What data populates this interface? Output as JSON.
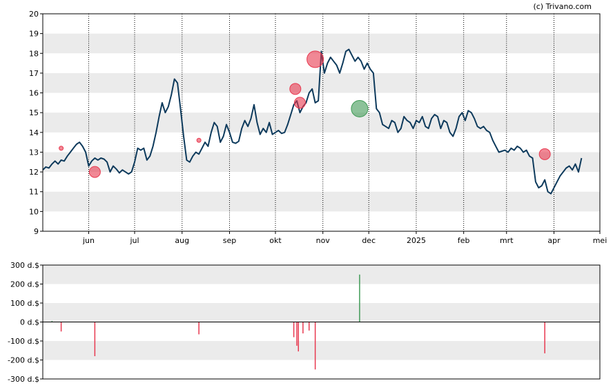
{
  "credit": "(c) Trivano.com",
  "colors": {
    "band": "#ebebeb",
    "price_line": "#0d3a5c",
    "sell": "#e8384f",
    "buy": "#3f9a55",
    "axis": "#000000"
  },
  "chart_data": [
    {
      "type": "line",
      "title": "",
      "xlabel": "",
      "ylabel": "",
      "ylim": [
        9,
        20
      ],
      "y_ticks": [
        "9",
        "10",
        "11",
        "12",
        "13",
        "14",
        "15",
        "16",
        "17",
        "18",
        "19",
        "20"
      ],
      "x_ticks": [
        "jun",
        "jul",
        "aug",
        "sep",
        "okt",
        "nov",
        "dec",
        "2025",
        "feb",
        "mrt",
        "apr",
        "mei"
      ],
      "x_tick_days": [
        30,
        60,
        91,
        122,
        152,
        183,
        213,
        244,
        275,
        303,
        334,
        364
      ],
      "grid": {
        "vertical": "dotted",
        "horizontal_bands": true
      },
      "series": [
        {
          "points": [
            [
              0,
              12.1
            ],
            [
              2,
              12.25
            ],
            [
              4,
              12.2
            ],
            [
              6,
              12.4
            ],
            [
              8,
              12.55
            ],
            [
              10,
              12.4
            ],
            [
              12,
              12.6
            ],
            [
              14,
              12.55
            ],
            [
              16,
              12.8
            ],
            [
              18,
              13.0
            ],
            [
              20,
              13.2
            ],
            [
              22,
              13.4
            ],
            [
              24,
              13.5
            ],
            [
              26,
              13.3
            ],
            [
              28,
              13.0
            ],
            [
              30,
              12.3
            ],
            [
              32,
              12.55
            ],
            [
              34,
              12.7
            ],
            [
              36,
              12.6
            ],
            [
              38,
              12.7
            ],
            [
              40,
              12.65
            ],
            [
              42,
              12.5
            ],
            [
              44,
              12.0
            ],
            [
              46,
              12.3
            ],
            [
              48,
              12.15
            ],
            [
              50,
              11.95
            ],
            [
              52,
              12.1
            ],
            [
              54,
              12.0
            ],
            [
              56,
              11.9
            ],
            [
              58,
              12.0
            ],
            [
              60,
              12.5
            ],
            [
              62,
              13.2
            ],
            [
              64,
              13.1
            ],
            [
              66,
              13.2
            ],
            [
              68,
              12.6
            ],
            [
              70,
              12.8
            ],
            [
              72,
              13.3
            ],
            [
              74,
              14.0
            ],
            [
              76,
              14.8
            ],
            [
              78,
              15.5
            ],
            [
              80,
              15.0
            ],
            [
              82,
              15.3
            ],
            [
              84,
              15.9
            ],
            [
              86,
              16.7
            ],
            [
              88,
              16.5
            ],
            [
              90,
              15.2
            ],
            [
              92,
              13.8
            ],
            [
              94,
              12.6
            ],
            [
              96,
              12.5
            ],
            [
              98,
              12.8
            ],
            [
              100,
              13.0
            ],
            [
              102,
              12.9
            ],
            [
              104,
              13.2
            ],
            [
              106,
              13.5
            ],
            [
              108,
              13.3
            ],
            [
              110,
              14.0
            ],
            [
              112,
              14.5
            ],
            [
              114,
              14.3
            ],
            [
              116,
              13.5
            ],
            [
              118,
              13.8
            ],
            [
              120,
              14.4
            ],
            [
              122,
              14.0
            ],
            [
              124,
              13.5
            ],
            [
              126,
              13.45
            ],
            [
              128,
              13.55
            ],
            [
              130,
              14.2
            ],
            [
              132,
              14.6
            ],
            [
              134,
              14.3
            ],
            [
              136,
              14.7
            ],
            [
              138,
              15.4
            ],
            [
              140,
              14.5
            ],
            [
              142,
              13.9
            ],
            [
              144,
              14.2
            ],
            [
              146,
              14.0
            ],
            [
              148,
              14.5
            ],
            [
              150,
              13.9
            ],
            [
              152,
              14.0
            ],
            [
              154,
              14.1
            ],
            [
              156,
              13.95
            ],
            [
              158,
              14.0
            ],
            [
              160,
              14.4
            ],
            [
              162,
              14.9
            ],
            [
              164,
              15.4
            ],
            [
              166,
              15.6
            ],
            [
              168,
              15.0
            ],
            [
              170,
              15.3
            ],
            [
              172,
              15.5
            ],
            [
              174,
              16.0
            ],
            [
              176,
              16.2
            ],
            [
              178,
              15.5
            ],
            [
              180,
              15.6
            ],
            [
              182,
              18.1
            ],
            [
              184,
              17.0
            ],
            [
              186,
              17.5
            ],
            [
              188,
              17.8
            ],
            [
              190,
              17.6
            ],
            [
              192,
              17.4
            ],
            [
              194,
              17.0
            ],
            [
              196,
              17.5
            ],
            [
              198,
              18.1
            ],
            [
              200,
              18.2
            ],
            [
              202,
              17.9
            ],
            [
              204,
              17.6
            ],
            [
              206,
              17.8
            ],
            [
              208,
              17.6
            ],
            [
              210,
              17.2
            ],
            [
              212,
              17.5
            ],
            [
              214,
              17.2
            ],
            [
              216,
              17.0
            ],
            [
              218,
              15.2
            ],
            [
              220,
              15.0
            ],
            [
              222,
              14.4
            ],
            [
              224,
              14.3
            ],
            [
              226,
              14.2
            ],
            [
              228,
              14.6
            ],
            [
              230,
              14.5
            ],
            [
              232,
              14.0
            ],
            [
              234,
              14.2
            ],
            [
              236,
              14.8
            ],
            [
              238,
              14.6
            ],
            [
              240,
              14.5
            ],
            [
              242,
              14.2
            ],
            [
              244,
              14.6
            ],
            [
              246,
              14.5
            ],
            [
              248,
              14.8
            ],
            [
              250,
              14.3
            ],
            [
              252,
              14.2
            ],
            [
              254,
              14.7
            ],
            [
              256,
              14.9
            ],
            [
              258,
              14.8
            ],
            [
              260,
              14.2
            ],
            [
              262,
              14.6
            ],
            [
              264,
              14.5
            ],
            [
              266,
              14.0
            ],
            [
              268,
              13.8
            ],
            [
              270,
              14.2
            ],
            [
              272,
              14.8
            ],
            [
              274,
              15.0
            ],
            [
              276,
              14.6
            ],
            [
              278,
              15.1
            ],
            [
              280,
              15.0
            ],
            [
              282,
              14.7
            ],
            [
              284,
              14.3
            ],
            [
              286,
              14.2
            ],
            [
              288,
              14.3
            ],
            [
              290,
              14.1
            ],
            [
              292,
              14.0
            ],
            [
              294,
              13.6
            ],
            [
              296,
              13.3
            ],
            [
              298,
              13.0
            ],
            [
              300,
              13.05
            ],
            [
              302,
              13.1
            ],
            [
              304,
              13.0
            ],
            [
              306,
              13.2
            ],
            [
              308,
              13.1
            ],
            [
              310,
              13.3
            ],
            [
              312,
              13.2
            ],
            [
              314,
              13.0
            ],
            [
              316,
              13.1
            ],
            [
              318,
              12.8
            ],
            [
              320,
              12.7
            ],
            [
              322,
              11.5
            ],
            [
              324,
              11.2
            ],
            [
              326,
              11.3
            ],
            [
              328,
              11.6
            ],
            [
              330,
              11.0
            ],
            [
              332,
              10.9
            ],
            [
              334,
              11.2
            ],
            [
              336,
              11.5
            ],
            [
              338,
              11.8
            ],
            [
              340,
              12.0
            ],
            [
              342,
              12.2
            ],
            [
              344,
              12.3
            ],
            [
              346,
              12.1
            ],
            [
              348,
              12.4
            ],
            [
              350,
              12.0
            ],
            [
              352,
              12.7
            ]
          ]
        }
      ],
      "trade_markers": [
        {
          "day": 12,
          "price": 13.2,
          "side": "sell",
          "size": "small"
        },
        {
          "day": 34,
          "price": 12.0,
          "side": "sell",
          "size": "medium"
        },
        {
          "day": 102,
          "price": 13.6,
          "side": "sell",
          "size": "small"
        },
        {
          "day": 165,
          "price": 16.2,
          "side": "sell",
          "size": "medium"
        },
        {
          "day": 168,
          "price": 15.5,
          "side": "sell",
          "size": "medium"
        },
        {
          "day": 178,
          "price": 17.7,
          "side": "sell",
          "size": "large"
        },
        {
          "day": 207,
          "price": 15.2,
          "side": "buy",
          "size": "large"
        },
        {
          "day": 328,
          "price": 12.9,
          "side": "sell",
          "size": "medium"
        }
      ]
    },
    {
      "type": "bar",
      "title": "",
      "xlabel": "",
      "ylabel": "",
      "ylim": [
        -300,
        300
      ],
      "y_ticks": [
        "300 d.$",
        "200 d.$",
        "100 d.$",
        "0 d.$",
        "-100 d.$",
        "-200 d.$",
        "-300 d.$"
      ],
      "bars": [
        {
          "day": 6,
          "value": 5
        },
        {
          "day": 12,
          "value": -50
        },
        {
          "day": 34,
          "value": -180
        },
        {
          "day": 102,
          "value": -65
        },
        {
          "day": 164,
          "value": -80
        },
        {
          "day": 166,
          "value": -125
        },
        {
          "day": 167,
          "value": -155
        },
        {
          "day": 170,
          "value": -60
        },
        {
          "day": 174,
          "value": -45
        },
        {
          "day": 178,
          "value": -250
        },
        {
          "day": 207,
          "value": 250
        },
        {
          "day": 328,
          "value": -165
        }
      ]
    }
  ]
}
